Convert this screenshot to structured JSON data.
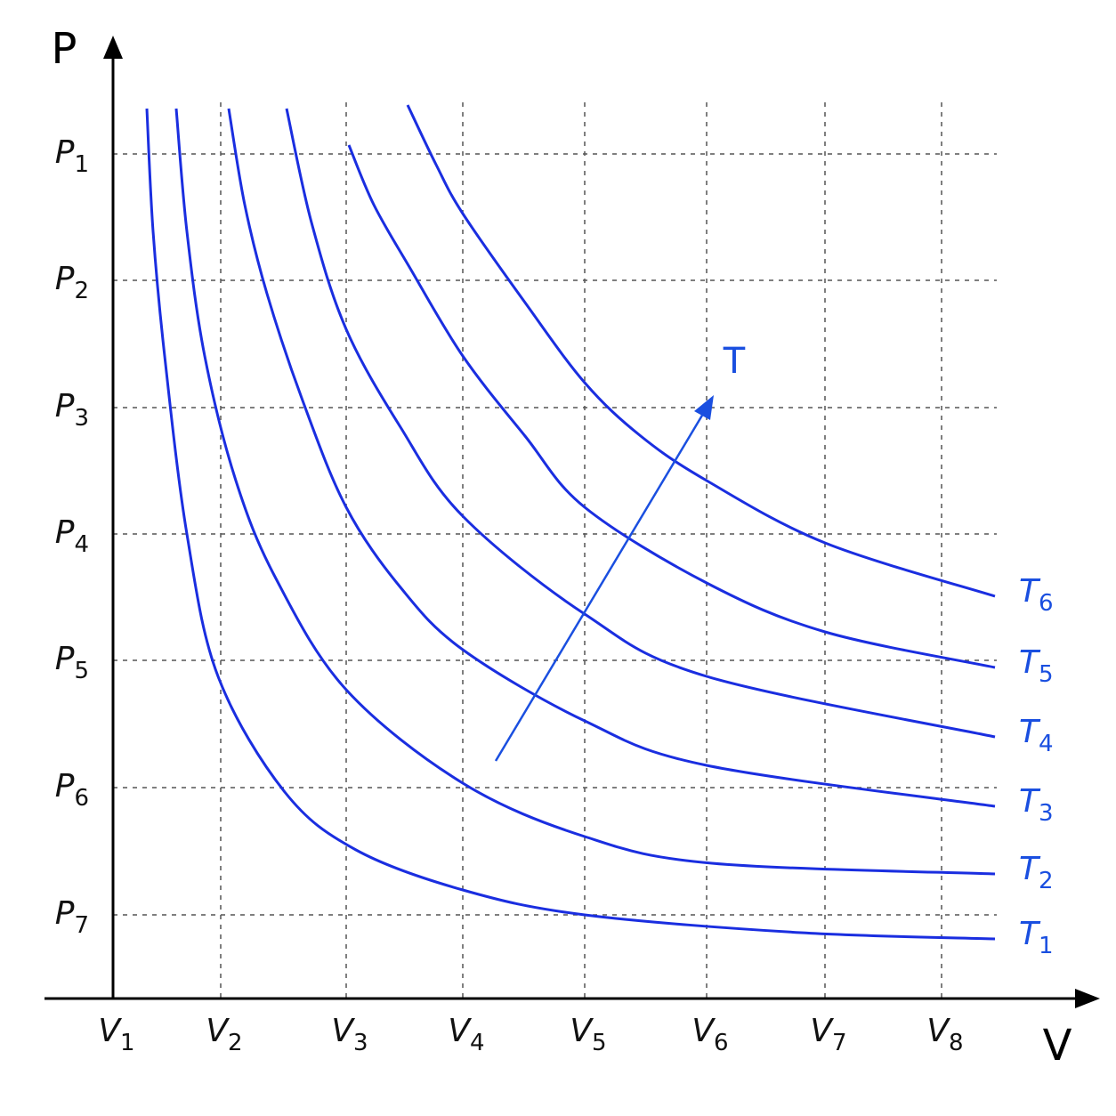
{
  "axes": {
    "y_label": "P",
    "x_label": "V"
  },
  "y_ticks": [
    {
      "base": "P",
      "sub": "1"
    },
    {
      "base": "P",
      "sub": "2"
    },
    {
      "base": "P",
      "sub": "3"
    },
    {
      "base": "P",
      "sub": "4"
    },
    {
      "base": "P",
      "sub": "5"
    },
    {
      "base": "P",
      "sub": "6"
    },
    {
      "base": "P",
      "sub": "7"
    }
  ],
  "x_ticks": [
    {
      "base": "V",
      "sub": "1"
    },
    {
      "base": "V",
      "sub": "2"
    },
    {
      "base": "V",
      "sub": "3"
    },
    {
      "base": "V",
      "sub": "4"
    },
    {
      "base": "V",
      "sub": "5"
    },
    {
      "base": "V",
      "sub": "6"
    },
    {
      "base": "V",
      "sub": "7"
    },
    {
      "base": "V",
      "sub": "8"
    }
  ],
  "isotherms": [
    {
      "base": "T",
      "sub": "1"
    },
    {
      "base": "T",
      "sub": "2"
    },
    {
      "base": "T",
      "sub": "3"
    },
    {
      "base": "T",
      "sub": "4"
    },
    {
      "base": "T",
      "sub": "5"
    },
    {
      "base": "T",
      "sub": "6"
    }
  ],
  "arrow_label": "T"
}
